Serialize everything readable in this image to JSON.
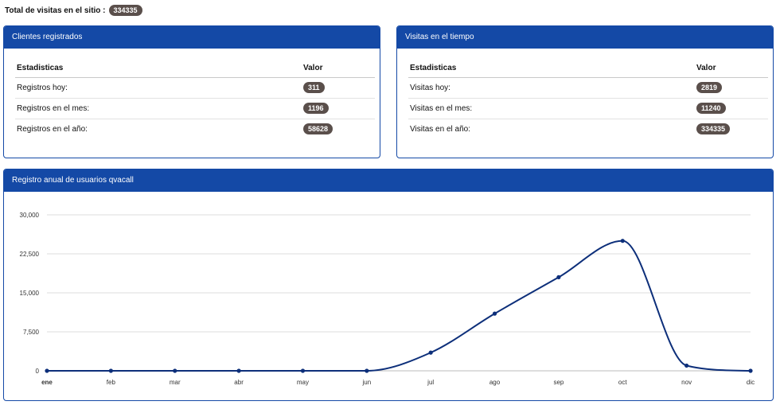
{
  "header": {
    "total_label": "Total de visitas en el sitio :",
    "total_value": "334335"
  },
  "clientes": {
    "title": "Clientes registrados",
    "col_stat": "Estadisticas",
    "col_value": "Valor",
    "rows": [
      {
        "label": "Registros hoy:",
        "value": "311"
      },
      {
        "label": "Registros en el mes:",
        "value": "1196"
      },
      {
        "label": "Registros en el año:",
        "value": "58628"
      }
    ]
  },
  "visitas": {
    "title": "Visitas en el tiempo",
    "col_stat": "Estadisticas",
    "col_value": "Valor",
    "rows": [
      {
        "label": "Visitas hoy:",
        "value": "2819"
      },
      {
        "label": "Visitas en el mes:",
        "value": "11240"
      },
      {
        "label": "Visitas en el año:",
        "value": "334335"
      }
    ]
  },
  "chart_panel": {
    "title": "Registro anual de usuarios qvacall"
  },
  "colors": {
    "accent": "#1449a6",
    "badge": "#5a4f4b",
    "line": "#0d2f7a"
  },
  "chart_data": {
    "type": "line",
    "categories": [
      "ene",
      "feb",
      "mar",
      "abr",
      "may",
      "jun",
      "jul",
      "ago",
      "sep",
      "oct",
      "nov",
      "dic"
    ],
    "values": [
      0,
      0,
      0,
      0,
      0,
      0,
      3500,
      11000,
      18000,
      25000,
      1000,
      0
    ],
    "yticks": [
      "0",
      "7,500",
      "15,000",
      "22,500",
      "30,000"
    ],
    "ylim": [
      0,
      30000
    ],
    "grid": true,
    "smooth": true
  }
}
